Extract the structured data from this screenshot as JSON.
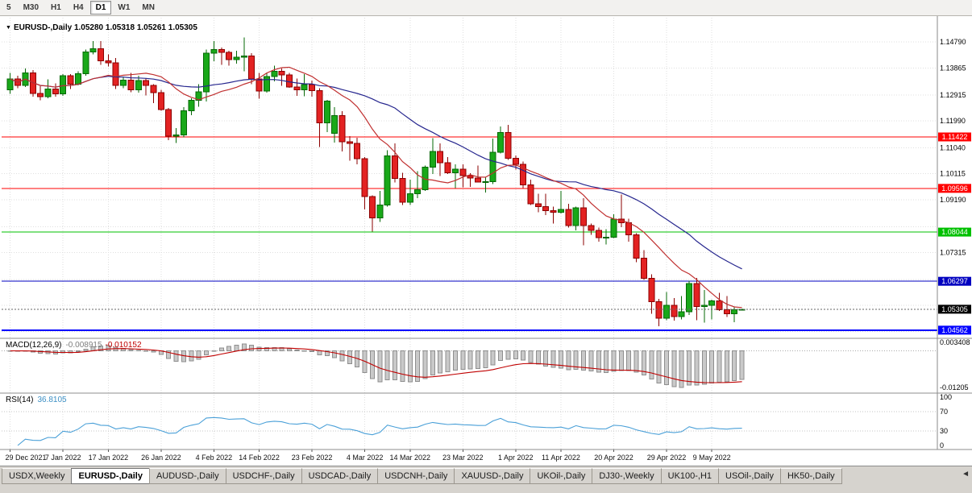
{
  "toolbar": {
    "timeframes": [
      {
        "label": "5",
        "active": false
      },
      {
        "label": "M30",
        "active": false
      },
      {
        "label": "H1",
        "active": false
      },
      {
        "label": "H4",
        "active": false
      },
      {
        "label": "D1",
        "active": true
      },
      {
        "label": "W1",
        "active": false
      },
      {
        "label": "MN",
        "active": false
      }
    ]
  },
  "chart": {
    "symbol_label": "EURUSD-,Daily",
    "open": "1.05280",
    "high": "1.05318",
    "low": "1.05261",
    "close": "1.05305",
    "dropdown_icon": "▼",
    "price_axis": [
      1.1479,
      1.13865,
      1.12915,
      1.1199,
      1.1104,
      1.10115,
      1.0919,
      1.0824,
      1.07315,
      1.06365,
      1.0544,
      1.04515
    ],
    "hlines": [
      {
        "price": 1.11422,
        "label": "1.11422",
        "color": "#FF0000",
        "width": 1
      },
      {
        "price": 1.09596,
        "label": "1.09596",
        "color": "#FF0000",
        "width": 1
      },
      {
        "price": 1.08044,
        "label": "1.08044",
        "color": "#00C000",
        "width": 1
      },
      {
        "price": 1.06297,
        "label": "1.06297",
        "color": "#0000C0",
        "width": 1
      },
      {
        "price": 1.04562,
        "label": "1.04562",
        "color": "#0000FF",
        "width": 2
      }
    ],
    "current_price": {
      "price": 1.05305,
      "label": "1.05305",
      "box_color": "#000000"
    },
    "colors": {
      "up_fill": "#19A819",
      "up_stroke": "#056805",
      "down_fill": "#E32222",
      "down_stroke": "#8B0000",
      "ma_fast": "#C03030",
      "ma_slow": "#26268E",
      "grid": "#DFDFDF",
      "macd_bar": "#C9C9C9",
      "macd_bar_stroke": "#8E8E8E",
      "macd_signal": "#C00000",
      "rsi_line": "#4AA0D8"
    }
  },
  "chart_data": {
    "type": "candlestick",
    "symbol": "EURUSD",
    "timeframe": "Daily",
    "price_range": [
      1.04329,
      1.15483
    ],
    "x_labels": [
      {
        "text": "29 Dec 2021",
        "index": 0
      },
      {
        "text": "7 Jan 2022",
        "index": 7
      },
      {
        "text": "17 Jan 2022",
        "index": 13
      },
      {
        "text": "26 Jan 2022",
        "index": 20
      },
      {
        "text": "4 Feb 2022",
        "index": 27
      },
      {
        "text": "14 Feb 2022",
        "index": 33
      },
      {
        "text": "23 Feb 2022",
        "index": 40
      },
      {
        "text": "4 Mar 2022",
        "index": 47
      },
      {
        "text": "14 Mar 2022",
        "index": 53
      },
      {
        "text": "23 Mar 2022",
        "index": 60
      },
      {
        "text": "1 Apr 2022",
        "index": 67
      },
      {
        "text": "11 Apr 2022",
        "index": 73
      },
      {
        "text": "20 Apr 2022",
        "index": 80
      },
      {
        "text": "29 Apr 2022",
        "index": 87
      },
      {
        "text": "9 May 2022",
        "index": 93
      }
    ],
    "indicators": {
      "ma_fast_period": 12,
      "ma_slow_period": 26,
      "macd": {
        "fast": 12,
        "slow": 26,
        "signal": 9
      },
      "rsi_period": 14
    },
    "candles": [
      [
        1.131,
        1.137,
        1.1295,
        1.1348
      ],
      [
        1.1348,
        1.136,
        1.1315,
        1.1325
      ],
      [
        1.1325,
        1.1385,
        1.132,
        1.137
      ],
      [
        1.137,
        1.138,
        1.1285,
        1.1297
      ],
      [
        1.1297,
        1.1323,
        1.1272,
        1.1285
      ],
      [
        1.1285,
        1.1347,
        1.128,
        1.1312
      ],
      [
        1.1312,
        1.1333,
        1.1285,
        1.1295
      ],
      [
        1.1295,
        1.1365,
        1.1288,
        1.136
      ],
      [
        1.136,
        1.1365,
        1.1313,
        1.133
      ],
      [
        1.133,
        1.1375,
        1.1325,
        1.1367
      ],
      [
        1.1367,
        1.1453,
        1.136,
        1.1444
      ],
      [
        1.1444,
        1.1482,
        1.1435,
        1.1455
      ],
      [
        1.1455,
        1.1483,
        1.1398,
        1.1412
      ],
      [
        1.1412,
        1.1435,
        1.1392,
        1.1405
      ],
      [
        1.1405,
        1.1422,
        1.1313,
        1.1325
      ],
      [
        1.1325,
        1.1357,
        1.1315,
        1.1344
      ],
      [
        1.1344,
        1.1369,
        1.1301,
        1.131
      ],
      [
        1.131,
        1.136,
        1.13,
        1.1343
      ],
      [
        1.1343,
        1.135,
        1.129,
        1.1325
      ],
      [
        1.1325,
        1.133,
        1.1263,
        1.13
      ],
      [
        1.13,
        1.131,
        1.1235,
        1.124
      ],
      [
        1.124,
        1.1245,
        1.1131,
        1.1145
      ],
      [
        1.1145,
        1.1174,
        1.1121,
        1.115
      ],
      [
        1.115,
        1.1248,
        1.1141,
        1.1235
      ],
      [
        1.1235,
        1.128,
        1.122,
        1.1273
      ],
      [
        1.1273,
        1.133,
        1.125,
        1.1303
      ],
      [
        1.1303,
        1.1452,
        1.1268,
        1.144
      ],
      [
        1.144,
        1.1483,
        1.1411,
        1.1452
      ],
      [
        1.1452,
        1.146,
        1.1398,
        1.1443
      ],
      [
        1.1443,
        1.1448,
        1.1396,
        1.1417
      ],
      [
        1.1417,
        1.1448,
        1.1403,
        1.1425
      ],
      [
        1.1425,
        1.1495,
        1.1375,
        1.143
      ],
      [
        1.143,
        1.144,
        1.133,
        1.1348
      ],
      [
        1.1348,
        1.137,
        1.1278,
        1.1305
      ],
      [
        1.1305,
        1.1368,
        1.13,
        1.1357
      ],
      [
        1.1357,
        1.1395,
        1.134,
        1.1375
      ],
      [
        1.1375,
        1.1385,
        1.1324,
        1.1362
      ],
      [
        1.1362,
        1.1369,
        1.1316,
        1.132
      ],
      [
        1.132,
        1.135,
        1.1288,
        1.131
      ],
      [
        1.131,
        1.1365,
        1.1287,
        1.1328
      ],
      [
        1.1328,
        1.1342,
        1.1285,
        1.1307
      ],
      [
        1.1307,
        1.1315,
        1.1106,
        1.1192
      ],
      [
        1.1192,
        1.1274,
        1.116,
        1.127
      ],
      [
        1.1155,
        1.1248,
        1.1122,
        1.1218
      ],
      [
        1.1218,
        1.1234,
        1.109,
        1.1125
      ],
      [
        1.1125,
        1.1145,
        1.1058,
        1.112
      ],
      [
        1.112,
        1.114,
        1.1045,
        1.1065
      ],
      [
        1.1065,
        1.107,
        1.0885,
        1.093
      ],
      [
        1.093,
        1.0935,
        1.0806,
        1.0855
      ],
      [
        1.0855,
        1.095,
        1.084,
        1.09
      ],
      [
        1.09,
        1.1095,
        1.0895,
        1.1075
      ],
      [
        1.1075,
        1.112,
        1.098,
        1.0995
      ],
      [
        1.0995,
        1.1015,
        1.09,
        1.091
      ],
      [
        1.091,
        1.099,
        1.09,
        1.094
      ],
      [
        1.094,
        1.102,
        1.0925,
        1.0955
      ],
      [
        1.0955,
        1.104,
        1.095,
        1.1035
      ],
      [
        1.1035,
        1.1138,
        1.101,
        1.109
      ],
      [
        1.109,
        1.1119,
        1.1003,
        1.105
      ],
      [
        1.105,
        1.107,
        1.101,
        1.1015
      ],
      [
        1.1015,
        1.1045,
        1.096,
        1.1028
      ],
      [
        1.1028,
        1.1045,
        1.0963,
        1.1005
      ],
      [
        1.1005,
        1.1014,
        1.0965,
        1.0997
      ],
      [
        1.0997,
        1.104,
        1.098,
        1.0982
      ],
      [
        1.0982,
        1.0999,
        1.0945,
        1.0983
      ],
      [
        1.0983,
        1.1137,
        1.0975,
        1.1088
      ],
      [
        1.1088,
        1.118,
        1.1084,
        1.1158
      ],
      [
        1.1158,
        1.1185,
        1.106,
        1.1067
      ],
      [
        1.1067,
        1.1077,
        1.1027,
        1.1045
      ],
      [
        1.1045,
        1.1055,
        1.096,
        1.0972
      ],
      [
        1.0972,
        1.099,
        1.09,
        1.0905
      ],
      [
        1.0905,
        1.094,
        1.0875,
        1.0895
      ],
      [
        1.0895,
        1.094,
        1.0865,
        1.088
      ],
      [
        1.088,
        1.0895,
        1.0835,
        1.0875
      ],
      [
        1.0875,
        1.095,
        1.087,
        1.0885
      ],
      [
        1.0885,
        1.0905,
        1.082,
        1.0828
      ],
      [
        1.0828,
        1.0895,
        1.081,
        1.089
      ],
      [
        1.089,
        1.0925,
        1.0757,
        1.0828
      ],
      [
        1.0828,
        1.0835,
        1.0795,
        1.081
      ],
      [
        1.081,
        1.082,
        1.077,
        1.0785
      ],
      [
        1.0785,
        1.0815,
        1.076,
        1.0786
      ],
      [
        1.0786,
        1.0867,
        1.0783,
        1.085
      ],
      [
        1.085,
        1.0937,
        1.0822,
        1.0838
      ],
      [
        1.0838,
        1.0852,
        1.077,
        1.0795
      ],
      [
        1.0795,
        1.08,
        1.0697,
        1.0712
      ],
      [
        1.0712,
        1.074,
        1.0635,
        1.064
      ],
      [
        1.064,
        1.0655,
        1.0514,
        1.0558
      ],
      [
        1.0558,
        1.0568,
        1.047,
        1.0498
      ],
      [
        1.0498,
        1.0592,
        1.0492,
        1.0545
      ],
      [
        1.0545,
        1.057,
        1.049,
        1.0505
      ],
      [
        1.0505,
        1.0578,
        1.0495,
        1.0522
      ],
      [
        1.0522,
        1.0632,
        1.051,
        1.0622
      ],
      [
        1.0622,
        1.0642,
        1.0492,
        1.054
      ],
      [
        1.054,
        1.0599,
        1.0483,
        1.0545
      ],
      [
        1.0545,
        1.0565,
        1.0495,
        1.056
      ],
      [
        1.056,
        1.0589,
        1.0525,
        1.0528
      ],
      [
        1.0528,
        1.0578,
        1.0503,
        1.0515
      ],
      [
        1.0515,
        1.054,
        1.0485,
        1.0528
      ],
      [
        1.0528,
        1.05318,
        1.05261,
        1.05305
      ]
    ]
  },
  "macd": {
    "title": "MACD(12,26,9)",
    "value_main": "-0.008915",
    "value_signal": "-0.010152",
    "axis_max": "0.003408",
    "axis_min": "-0.01205"
  },
  "rsi": {
    "title": "RSI(14)",
    "value": "36.8105",
    "levels": [
      "100",
      "70",
      "30",
      "0"
    ]
  },
  "tabs": {
    "scroll_icon": "◄",
    "items": [
      {
        "label": "USDX,Weekly",
        "active": false
      },
      {
        "label": "EURUSD-,Daily",
        "active": true
      },
      {
        "label": "AUDUSD-,Daily",
        "active": false
      },
      {
        "label": "USDCHF-,Daily",
        "active": false
      },
      {
        "label": "USDCAD-,Daily",
        "active": false
      },
      {
        "label": "USDCNH-,Daily",
        "active": false
      },
      {
        "label": "XAUUSD-,Daily",
        "active": false
      },
      {
        "label": "UKOil-,Daily",
        "active": false
      },
      {
        "label": "DJ30-,Weekly",
        "active": false
      },
      {
        "label": "UK100-,H1",
        "active": false
      },
      {
        "label": "USOil-,Daily",
        "active": false
      },
      {
        "label": "HK50-,Daily",
        "active": false
      }
    ]
  }
}
